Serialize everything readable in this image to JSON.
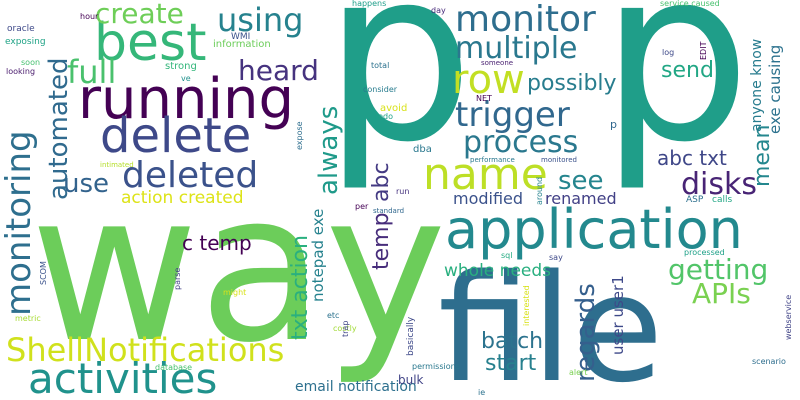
{
  "words": [
    {
      "text": "way",
      "color": "#6ccd5a",
      "rotated": false
    },
    {
      "text": "p",
      "color": "#1f9e89",
      "rotated": false
    },
    {
      "text": "p",
      "color": "#1f9e89",
      "rotated": false
    },
    {
      "text": "file",
      "color": "#2e6e8e",
      "rotated": false
    },
    {
      "text": "application",
      "color": "#23898e",
      "rotated": false
    },
    {
      "text": "running",
      "color": "#440154",
      "rotated": false
    },
    {
      "text": "activities",
      "color": "#20928c",
      "rotated": false
    },
    {
      "text": "best",
      "color": "#35b779",
      "rotated": false
    },
    {
      "text": "delete",
      "color": "#3e4989",
      "rotated": false
    },
    {
      "text": "name",
      "color": "#bddf26",
      "rotated": false
    },
    {
      "text": "row",
      "color": "#c2df23",
      "rotated": false
    },
    {
      "text": "monitor",
      "color": "#2e6e8e",
      "rotated": false
    },
    {
      "text": "multiple",
      "color": "#2a788e",
      "rotated": false
    },
    {
      "text": "trigger",
      "color": "#31688e",
      "rotated": false
    },
    {
      "text": "process",
      "color": "#2a788e",
      "rotated": false
    },
    {
      "text": "ShellNotifications",
      "color": "#d0e11c",
      "rotated": false
    },
    {
      "text": "deleted",
      "color": "#3b528b",
      "rotated": false
    },
    {
      "text": "create",
      "color": "#6ece58",
      "rotated": false
    },
    {
      "text": "using",
      "color": "#26828e",
      "rotated": false
    },
    {
      "text": "full",
      "color": "#4ac16d",
      "rotated": false
    },
    {
      "text": "heard",
      "color": "#46337f",
      "rotated": false
    },
    {
      "text": "use",
      "color": "#33638d",
      "rotated": false
    },
    {
      "text": "disks",
      "color": "#482475",
      "rotated": false
    },
    {
      "text": "see",
      "color": "#25858e",
      "rotated": false
    },
    {
      "text": "possibly",
      "color": "#287d8e",
      "rotated": false
    },
    {
      "text": "send",
      "color": "#22a785",
      "rotated": false
    },
    {
      "text": "getting",
      "color": "#52c569",
      "rotated": false
    },
    {
      "text": "APIs",
      "color": "#7ad151",
      "rotated": false
    },
    {
      "text": "batch",
      "color": "#2c738e",
      "rotated": false
    },
    {
      "text": "start",
      "color": "#27808e",
      "rotated": false
    },
    {
      "text": "monitoring",
      "color": "#2e6f8e",
      "rotated": true
    },
    {
      "text": "automated",
      "color": "#306a8e",
      "rotated": true
    },
    {
      "text": "always",
      "color": "#1f9a8a",
      "rotated": true
    },
    {
      "text": "regards",
      "color": "#355f8d",
      "rotated": true
    },
    {
      "text": "mean",
      "color": "#24878e",
      "rotated": true
    },
    {
      "text": "txt action",
      "color": "#2ab07f",
      "rotated": true
    },
    {
      "text": "temp",
      "color": "#472d7b",
      "rotated": true
    },
    {
      "text": "abc",
      "color": "#443a83",
      "rotated": true
    },
    {
      "text": "abc txt",
      "color": "#3f4788",
      "rotated": false
    },
    {
      "text": "c temp",
      "color": "#440154",
      "rotated": false
    },
    {
      "text": "action created",
      "color": "#dde318",
      "rotated": false
    },
    {
      "text": "whole needs",
      "color": "#29af7f",
      "rotated": false
    },
    {
      "text": "modified",
      "color": "#3b528b",
      "rotated": false
    },
    {
      "text": "renamed",
      "color": "#424086",
      "rotated": false
    },
    {
      "text": "email notification",
      "color": "#2d708e",
      "rotated": false
    },
    {
      "text": "notepad exe",
      "color": "#26828e",
      "rotated": true
    },
    {
      "text": "user user1",
      "color": "#3e4989",
      "rotated": true
    },
    {
      "text": "exe causing",
      "color": "#2c728e",
      "rotated": true
    },
    {
      "text": "anyone know",
      "color": "#287c8e",
      "rotated": true
    },
    {
      "text": "bulk",
      "color": "#414487",
      "rotated": false
    },
    {
      "text": "WMI",
      "color": "#3b528b",
      "rotated": false
    },
    {
      "text": "information",
      "color": "#6ccd5a",
      "rotated": false
    },
    {
      "text": "strong",
      "color": "#32b67a",
      "rotated": false
    },
    {
      "text": "hour",
      "color": "#440154",
      "rotated": false
    },
    {
      "text": "oracle",
      "color": "#3e4989",
      "rotated": false
    },
    {
      "text": "exposing",
      "color": "#20a386",
      "rotated": false
    },
    {
      "text": "soon",
      "color": "#46c06f",
      "rotated": false
    },
    {
      "text": "looking",
      "color": "#481a6c",
      "rotated": false
    },
    {
      "text": "ve",
      "color": "#21918c",
      "rotated": false
    },
    {
      "text": "happens",
      "color": "#1f9e89",
      "rotated": false
    },
    {
      "text": "day",
      "color": "#472a7a",
      "rotated": false
    },
    {
      "text": "service caused",
      "color": "#48c16e",
      "rotated": false
    },
    {
      "text": "someone",
      "color": "#481f70",
      "rotated": false
    },
    {
      "text": "total",
      "color": "#2c728e",
      "rotated": false
    },
    {
      "text": "NET",
      "color": "#440154",
      "rotated": false
    },
    {
      "text": "consider",
      "color": "#287c8e",
      "rotated": false
    },
    {
      "text": "avoid",
      "color": "#d8e219",
      "rotated": false
    },
    {
      "text": "redo",
      "color": "#1fa188",
      "rotated": false
    },
    {
      "text": "log",
      "color": "#3e4989",
      "rotated": false
    },
    {
      "text": "performance",
      "color": "#2a788e",
      "rotated": false
    },
    {
      "text": "monitored",
      "color": "#3b528b",
      "rotated": false
    },
    {
      "text": "dba",
      "color": "#2a788e",
      "rotated": false
    },
    {
      "text": "run",
      "color": "#46337f",
      "rotated": false
    },
    {
      "text": "per",
      "color": "#440154",
      "rotated": false
    },
    {
      "text": "standard",
      "color": "#31688e",
      "rotated": false
    },
    {
      "text": "ASP",
      "color": "#2d708e",
      "rotated": false
    },
    {
      "text": "calls",
      "color": "#22a785",
      "rotated": false
    },
    {
      "text": "intimated",
      "color": "#b5de2b",
      "rotated": false
    },
    {
      "text": "processed",
      "color": "#1fa188",
      "rotated": false
    },
    {
      "text": "sql",
      "color": "#25ab82",
      "rotated": false
    },
    {
      "text": "say",
      "color": "#3e4989",
      "rotated": false
    },
    {
      "text": "might",
      "color": "#d8e219",
      "rotated": false
    },
    {
      "text": "etc",
      "color": "#2c728e",
      "rotated": false
    },
    {
      "text": "permissions",
      "color": "#2a788e",
      "rotated": false
    },
    {
      "text": "database",
      "color": "#46c06f",
      "rotated": false
    },
    {
      "text": "costly",
      "color": "#a2da37",
      "rotated": false
    },
    {
      "text": "metric",
      "color": "#a8db34",
      "rotated": false
    },
    {
      "text": "alert",
      "color": "#7ad151",
      "rotated": false
    },
    {
      "text": "ie",
      "color": "#2c728e",
      "rotated": false
    },
    {
      "text": "scenario",
      "color": "#2e6e8e",
      "rotated": false
    },
    {
      "text": "p",
      "color": "#31688e",
      "rotated": false
    },
    {
      "text": "SCOM",
      "color": "#3b528b",
      "rotated": true
    },
    {
      "text": "parse",
      "color": "#424086",
      "rotated": true
    },
    {
      "text": "trap",
      "color": "#404688",
      "rotated": true
    },
    {
      "text": "basically",
      "color": "#3e4989",
      "rotated": true
    },
    {
      "text": "interested",
      "color": "#d8e219",
      "rotated": true
    },
    {
      "text": "around",
      "color": "#25838e",
      "rotated": true
    },
    {
      "text": "expose",
      "color": "#2e6e8e",
      "rotated": true
    },
    {
      "text": "EDIT",
      "color": "#440154",
      "rotated": true
    },
    {
      "text": "webservice",
      "color": "#414487",
      "rotated": true
    }
  ]
}
